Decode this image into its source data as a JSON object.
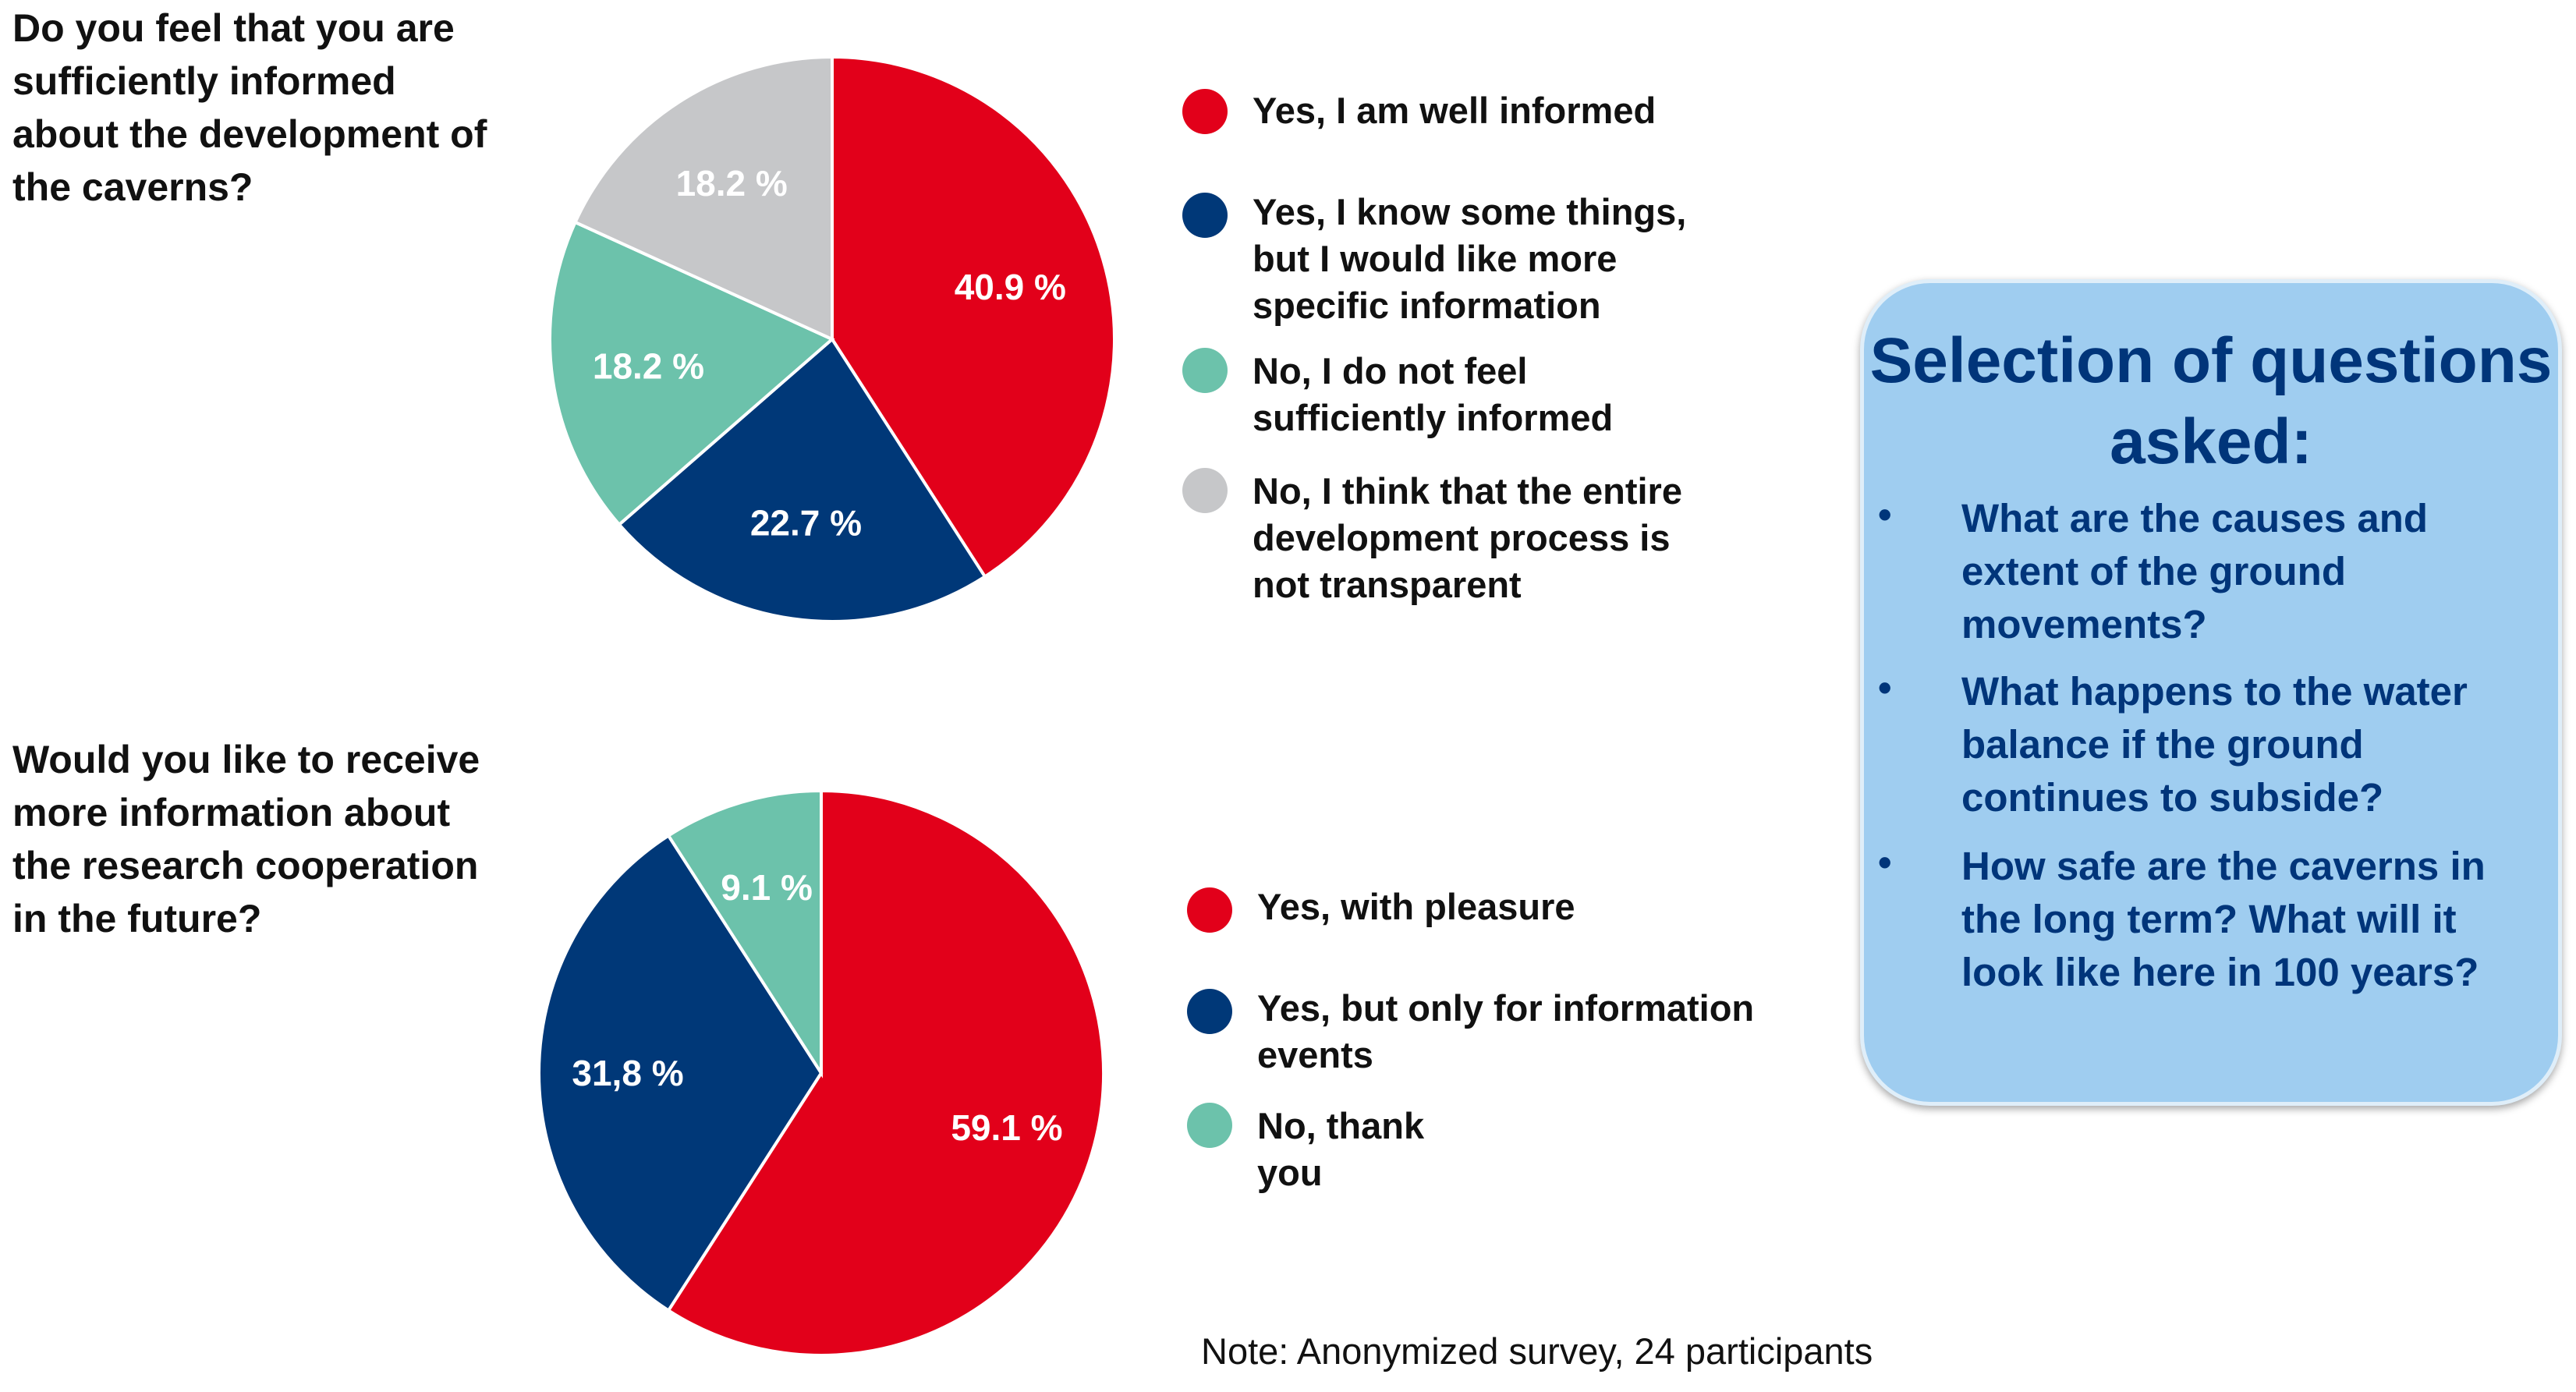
{
  "chart_data": [
    {
      "type": "pie",
      "title": "Do you feel that you are sufficiently informed about the development of the caverns?",
      "categories": [
        "Yes, I am well informed",
        "Yes, I know some things, but I would like more specific information",
        "No, I do not feel sufficiently informed",
        "No, I think that the entire development process is not transparent"
      ],
      "values": [
        40.9,
        22.7,
        18.2,
        18.2
      ],
      "value_labels": [
        "40.9 %",
        "22.7 %",
        "18.2 %",
        "18.2 %"
      ],
      "colors": [
        "#e2001a",
        "#003878",
        "#6cc2ab",
        "#c6c7c9"
      ],
      "legend_lines": [
        "Yes, I am well informed",
        "Yes, I know some things,\nbut I would like more\nspecific information",
        "No, I do not feel\nsufficiently informed",
        "No, I think that the entire\ndevelopment process is\nnot transparent"
      ],
      "legend": "right"
    },
    {
      "type": "pie",
      "title": "Would you like to receive more information about the research cooperation in the future?",
      "categories": [
        "Yes, with pleasure",
        "Yes, but only for information events",
        "No, thank you"
      ],
      "values": [
        59.1,
        31.8,
        9.1
      ],
      "value_labels": [
        "59.1 %",
        "31,8 %",
        "9.1 %"
      ],
      "colors": [
        "#e2001a",
        "#003878",
        "#6cc2ab"
      ],
      "legend_lines": [
        "Yes, with pleasure",
        "Yes, but only for information\nevents",
        "No, thank\nyou"
      ],
      "legend": "right"
    }
  ],
  "questions": {
    "q1": "Do you feel that you are sufficiently informed about the development of the caverns?",
    "q2": "Would you like to receive more information about the research cooperation in the future?"
  },
  "note": "Note: Anonymized survey, 24 participants",
  "selection_box": {
    "title": "Selection of questions asked:",
    "bullet": "•",
    "items": [
      "What are the causes and extent of the ground movements?",
      "What happens to the water balance if the ground continues to subside?",
      "How safe are the caverns in the long term? What will it look like here in 100 years?"
    ]
  }
}
